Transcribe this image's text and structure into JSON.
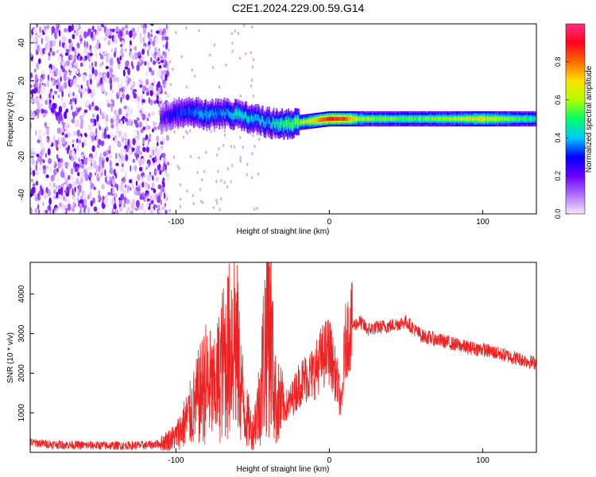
{
  "title": "C2E1.2024.229.00.59.G14",
  "chart_data": [
    {
      "type": "heatmap",
      "xlabel": "Height of straight line (km)",
      "ylabel": "Frequency (Hz)",
      "xlim": [
        -195,
        135
      ],
      "ylim": [
        -50,
        50
      ],
      "x_ticks": [
        -100,
        0,
        100
      ],
      "y_ticks": [
        -40,
        -20,
        0,
        20,
        40
      ],
      "grid": false,
      "colorbar": {
        "label": "Normalized spectral amplitude",
        "range": [
          0,
          1
        ],
        "ticks": [
          0.0,
          0.2,
          0.4,
          0.6,
          0.8
        ],
        "colors": [
          "#f4e6ff",
          "#b070ff",
          "#6a00ff",
          "#0000ff",
          "#00c8ff",
          "#00ff66",
          "#b0ff00",
          "#ffe000",
          "#ff6a00",
          "#ff0020",
          "#ff3080"
        ]
      },
      "noise_region_x": [
        -195,
        -105
      ],
      "signal_track": {
        "x": [
          -110,
          -100,
          -90,
          -80,
          -70,
          -60,
          -50,
          -40,
          -30,
          -20,
          -10,
          0,
          10,
          20,
          40,
          60,
          80,
          100,
          120,
          135
        ],
        "freq": [
          0,
          3,
          4,
          2,
          3,
          2,
          0,
          -2,
          -3,
          -2,
          -1,
          0,
          0,
          0,
          0,
          0,
          0,
          0,
          0,
          0
        ],
        "amplitude": [
          0.2,
          0.3,
          0.35,
          0.4,
          0.35,
          0.45,
          0.4,
          0.4,
          0.5,
          0.55,
          0.7,
          0.9,
          0.85,
          0.6,
          0.55,
          0.55,
          0.6,
          0.7,
          0.55,
          0.5
        ]
      }
    },
    {
      "type": "line",
      "xlabel": "Height of straight line (km)",
      "ylabel": "SNR (10 * v/v)",
      "xlim": [
        -195,
        135
      ],
      "ylim": [
        0,
        4800
      ],
      "x_ticks": [
        -100,
        0,
        100
      ],
      "y_ticks": [
        1000,
        2000,
        3000,
        4000
      ],
      "grid": false,
      "color": "#ee2222",
      "series": [
        {
          "x": [
            -195,
            -180,
            -160,
            -140,
            -120,
            -110,
            -100,
            -95,
            -90,
            -85,
            -80,
            -75,
            -70,
            -65,
            -62,
            -58,
            -55,
            -50,
            -45,
            -42,
            -39,
            -37,
            -35,
            -30,
            -25,
            -20,
            -15,
            -10,
            -5,
            0,
            5,
            8,
            10,
            12,
            15,
            20,
            25,
            30,
            40,
            50,
            60,
            70,
            80,
            90,
            100,
            110,
            120,
            135
          ],
          "y": [
            250,
            200,
            180,
            170,
            180,
            220,
            400,
            700,
            1000,
            1400,
            1800,
            1500,
            2200,
            2600,
            3200,
            1800,
            1000,
            500,
            1400,
            2800,
            3600,
            2200,
            1300,
            1100,
            1300,
            1700,
            1900,
            2000,
            2400,
            2600,
            1800,
            1100,
            2700,
            3000,
            3200,
            3300,
            3100,
            3150,
            3200,
            3300,
            2950,
            2850,
            2750,
            2650,
            2600,
            2500,
            2400,
            2250
          ]
        }
      ]
    }
  ]
}
